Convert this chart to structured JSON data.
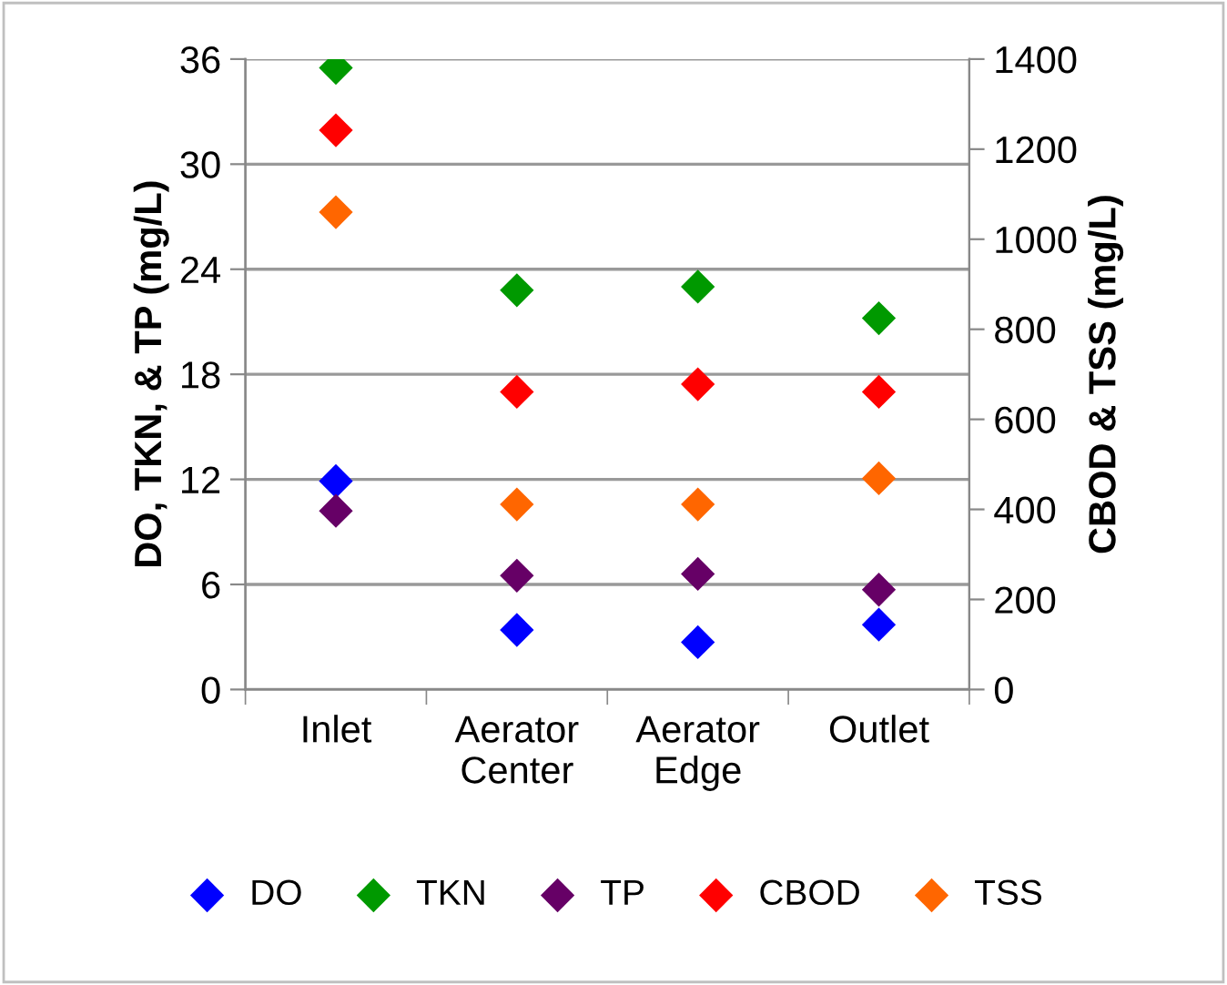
{
  "chart_data": {
    "type": "scatter",
    "categories": [
      "Inlet",
      "Aerator\nCenter",
      "Aerator\nEdge",
      "Outlet"
    ],
    "ylabel": "DO, TKN, & TP (mg/L)",
    "y2label": "CBOD & TSS (mg/L)",
    "ylim": [
      0,
      36
    ],
    "yticks": [
      0,
      6,
      12,
      18,
      24,
      30,
      36
    ],
    "y2lim": [
      0,
      1400
    ],
    "y2ticks": [
      0,
      200,
      400,
      600,
      800,
      1000,
      1200,
      1400
    ],
    "grid": "y",
    "legend": "bottom",
    "marker": "diamond",
    "series": [
      {
        "name": "DO",
        "color": "#0000ff",
        "values": [
          11.9,
          3.4,
          2.7,
          3.7
        ]
      },
      {
        "name": "TKN",
        "color": "#009900",
        "values": [
          35.5,
          22.8,
          23.0,
          21.2
        ]
      },
      {
        "name": "TP",
        "color": "#660066",
        "values": [
          10.2,
          6.5,
          6.6,
          5.7
        ]
      },
      {
        "name": "CBOD",
        "color": "#ff0000",
        "axis": "y2",
        "values": [
          1242,
          661,
          678,
          661
        ]
      },
      {
        "name": "TSS",
        "color": "#ff6600",
        "axis": "y2",
        "values": [
          1060,
          411,
          411,
          469
        ]
      }
    ]
  }
}
